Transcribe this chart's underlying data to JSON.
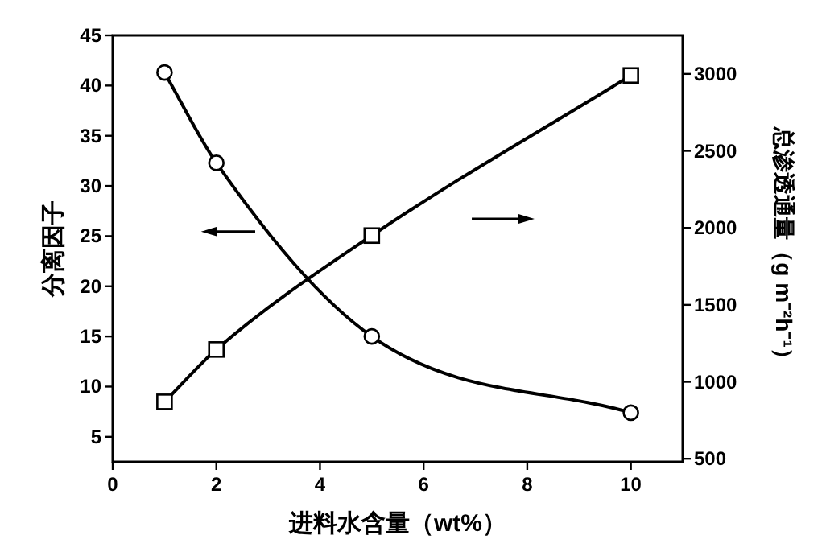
{
  "chart_data": {
    "type": "line",
    "xlabel": "进料水含量（wt%）",
    "ylabel": "分离因子",
    "y2label": "总渗透通量（g m⁻²h⁻¹）",
    "x": [
      1,
      2,
      5,
      10
    ],
    "series": [
      {
        "color": "#000000",
        "marker": "circle",
        "values": [
          41.3,
          32.3,
          15,
          7.4
        ]
      },
      {
        "color": "#000000",
        "marker": "square",
        "axis": "y2",
        "values": [
          870,
          1210,
          1950,
          2990
        ]
      }
    ],
    "xlim": [
      0,
      11
    ],
    "xticks": [
      0,
      2,
      4,
      6,
      8,
      10
    ],
    "ylim": [
      2.5,
      45
    ],
    "yticks": [
      5,
      10,
      15,
      20,
      25,
      30,
      35,
      40,
      45
    ],
    "y2lim": [
      480,
      3250
    ],
    "y2ticks": [
      500,
      1000,
      1500,
      2000,
      2500,
      3000
    ]
  }
}
